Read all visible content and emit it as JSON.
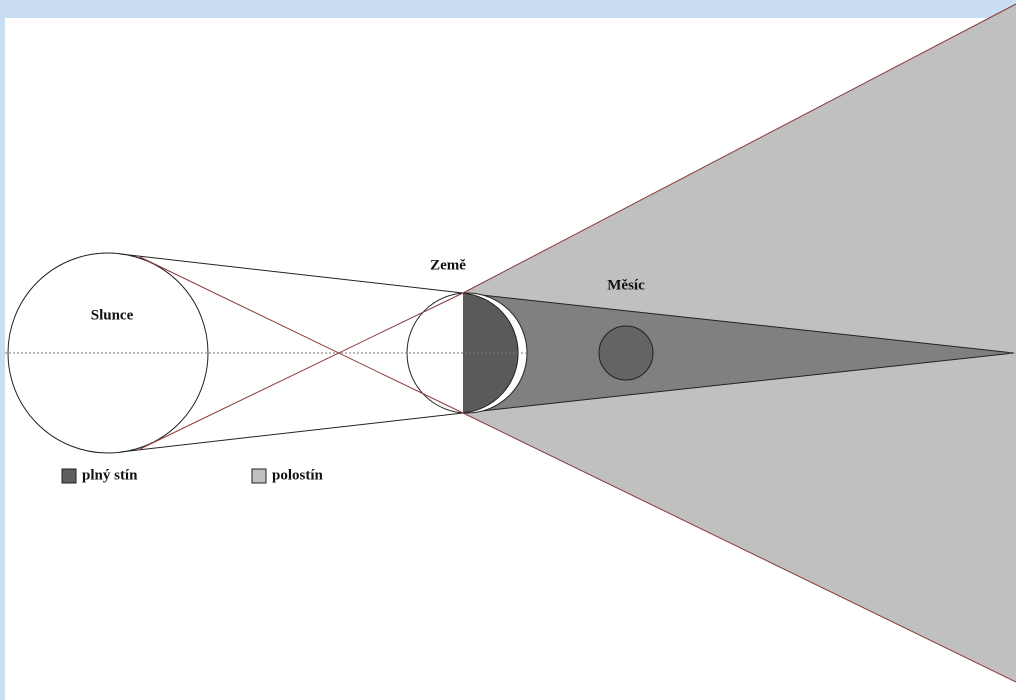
{
  "labels": {
    "sun": "Slunce",
    "earth": "Země",
    "moon": "Měsíc"
  },
  "legend": [
    {
      "label": "plný stín",
      "color": "#5f5f5f"
    },
    {
      "label": "polostín",
      "color": "#c0c0c0"
    }
  ]
}
